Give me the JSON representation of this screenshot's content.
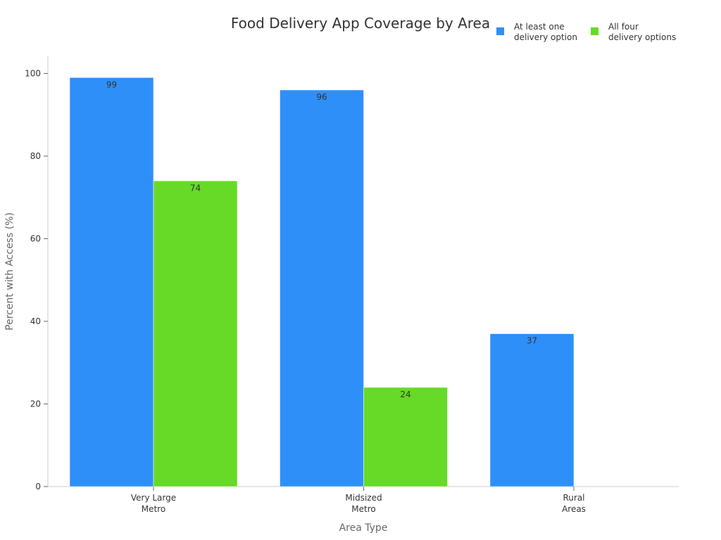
{
  "chart_data": {
    "type": "bar",
    "title": "Food Delivery App Coverage by Area",
    "xlabel": "Area Type",
    "ylabel": "Percent with Access (%)",
    "ylim": [
      0,
      104
    ],
    "yticks": [
      0,
      20,
      40,
      60,
      80,
      100
    ],
    "categories": [
      [
        "Very Large",
        "Metro"
      ],
      [
        "Midsized",
        "Metro"
      ],
      [
        "Rural",
        "Areas"
      ]
    ],
    "series": [
      {
        "name": [
          "At least one",
          "delivery option"
        ],
        "color": "#2f8ff9",
        "values": [
          99,
          96,
          37
        ]
      },
      {
        "name": [
          "All four",
          "delivery options"
        ],
        "color": "#66da26",
        "values": [
          74,
          24,
          null
        ]
      }
    ],
    "legend_position": "top-right",
    "grid": false
  }
}
